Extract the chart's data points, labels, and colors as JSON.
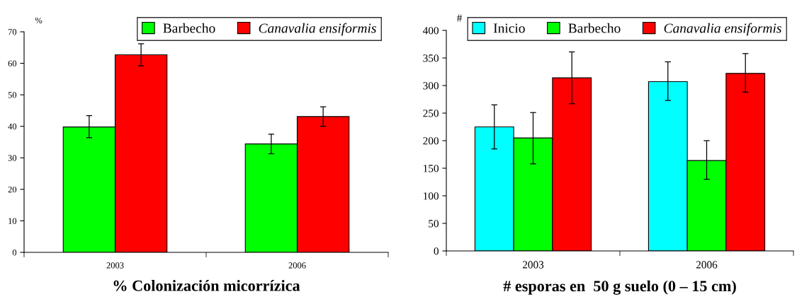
{
  "chart_data": [
    {
      "type": "bar",
      "xlabel": "% Colonización micorrízica",
      "ylabel": "%",
      "categories": [
        "2003",
        "2006"
      ],
      "series": [
        {
          "name": "Barbecho",
          "color": "#00ff00",
          "values": [
            39.8,
            34.4
          ],
          "errors": [
            [
              36.4,
              43.4
            ],
            [
              31.3,
              37.5
            ]
          ]
        },
        {
          "name": "Canavalia ensiformis",
          "color": "#ff0000",
          "values": [
            62.7,
            43.1
          ],
          "errors": [
            [
              59.2,
              66.2
            ],
            [
              40.0,
              46.2
            ]
          ]
        }
      ],
      "ylim": [
        0,
        70
      ],
      "yticks": [
        0,
        10,
        20,
        30,
        40,
        50,
        60,
        70
      ],
      "grid": false,
      "legend": "top right"
    },
    {
      "type": "bar",
      "xlabel": "# esporas en  50 g suelo (0 – 15 cm)",
      "ylabel": "#",
      "categories": [
        "2003",
        "2006"
      ],
      "series": [
        {
          "name": "Inicio",
          "color": "#00ffff",
          "values": [
            225,
            307
          ],
          "errors": [
            [
              185,
              265
            ],
            [
              273,
              343
            ]
          ]
        },
        {
          "name": "Barbecho",
          "color": "#00ff00",
          "values": [
            205,
            164
          ],
          "errors": [
            [
              158,
              251
            ],
            [
              130,
              200
            ]
          ]
        },
        {
          "name": "Canavalia ensiformis",
          "color": "#ff0000",
          "values": [
            314,
            322
          ],
          "errors": [
            [
              267,
              361
            ],
            [
              288,
              358
            ]
          ]
        }
      ],
      "ylim": [
        0,
        400
      ],
      "yticks": [
        0,
        50,
        100,
        150,
        200,
        250,
        300,
        350,
        400
      ],
      "grid": false,
      "legend": "top right"
    }
  ]
}
